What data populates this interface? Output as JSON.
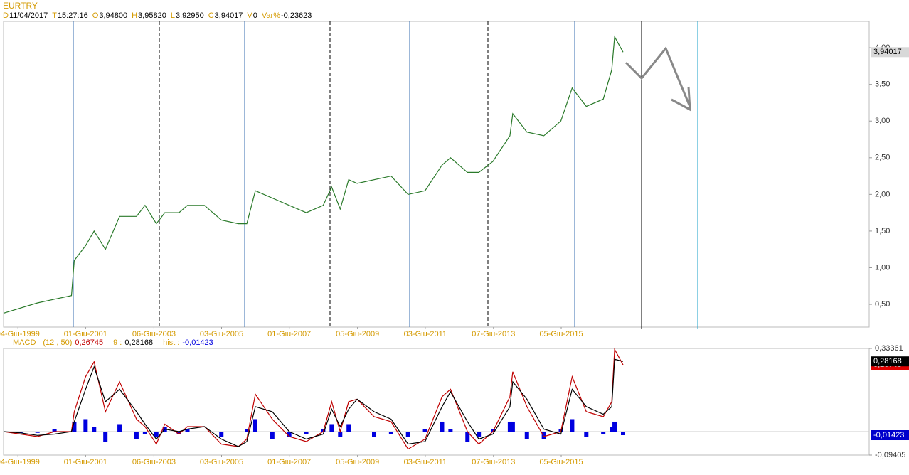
{
  "header": {
    "symbol": "EURTRY",
    "fields": [
      {
        "key": "D",
        "value": "11/04/2017"
      },
      {
        "key": "T",
        "value": "15:27:16"
      },
      {
        "key": "O",
        "value": "3,94800"
      },
      {
        "key": "H",
        "value": "3,95820"
      },
      {
        "key": "L",
        "value": "3,92950"
      },
      {
        "key": "C",
        "value": "3,94017"
      },
      {
        "key": "V",
        "value": "0"
      },
      {
        "key": "Var%",
        "value": "-0,23623"
      }
    ]
  },
  "chart_data": [
    {
      "type": "line",
      "x": [
        "1999-01",
        "1999-07",
        "2000-01",
        "2000-07",
        "2001-01",
        "2001-02",
        "2001-06",
        "2001-09",
        "2002-01",
        "2002-06",
        "2002-12",
        "2003-03",
        "2003-07",
        "2003-10",
        "2004-03",
        "2004-06",
        "2004-12",
        "2005-06",
        "2005-12",
        "2006-03",
        "2006-06",
        "2006-12",
        "2007-06",
        "2007-12",
        "2008-06",
        "2008-09",
        "2008-12",
        "2009-03",
        "2009-06",
        "2009-12",
        "2010-06",
        "2010-12",
        "2011-06",
        "2011-12",
        "2012-03",
        "2012-09",
        "2013-01",
        "2013-06",
        "2013-12",
        "2014-01",
        "2014-06",
        "2014-12",
        "2015-06",
        "2015-10",
        "2016-03",
        "2016-09",
        "2016-12",
        "2017-01",
        "2017-04"
      ],
      "series": [
        {
          "name": "EURTRY",
          "color": "#2a7a2a",
          "values": [
            0.38,
            0.45,
            0.52,
            0.57,
            0.62,
            1.1,
            1.3,
            1.5,
            1.25,
            1.7,
            1.7,
            1.85,
            1.6,
            1.75,
            1.75,
            1.85,
            1.85,
            1.65,
            1.6,
            1.6,
            2.05,
            1.95,
            1.85,
            1.75,
            1.85,
            2.1,
            1.8,
            2.2,
            2.15,
            2.2,
            2.25,
            2.0,
            2.05,
            2.4,
            2.5,
            2.3,
            2.3,
            2.45,
            2.8,
            3.1,
            2.85,
            2.8,
            3.0,
            3.45,
            3.2,
            3.3,
            3.7,
            4.15,
            3.94
          ]
        }
      ],
      "last_label": "3,94017",
      "xlim": [
        "1999-01",
        "2024-07"
      ],
      "xticks": [
        {
          "value": "1999-06-04",
          "label": "04-Giu-1999"
        },
        {
          "value": "2001-06-01",
          "label": "01-Giu-2001"
        },
        {
          "value": "2003-06-06",
          "label": "06-Giu-2003"
        },
        {
          "value": "2005-06-03",
          "label": "03-Giu-2005"
        },
        {
          "value": "2007-06-01",
          "label": "01-Giu-2007"
        },
        {
          "value": "2009-06-05",
          "label": "05-Giu-2009"
        },
        {
          "value": "2011-06-03",
          "label": "03-Giu-2011"
        },
        {
          "value": "2013-06-07",
          "label": "07-Giu-2013"
        },
        {
          "value": "2015-06-05",
          "label": "05-Giu-2015"
        }
      ],
      "ylim": [
        0.19,
        4.36
      ],
      "yticks": [
        {
          "value": 0.5,
          "label": "0,50"
        },
        {
          "value": 1.0,
          "label": "1,00"
        },
        {
          "value": 1.5,
          "label": "1,50"
        },
        {
          "value": 2.0,
          "label": "2,00"
        },
        {
          "value": 2.5,
          "label": "2,50"
        },
        {
          "value": 3.0,
          "label": "3,00"
        },
        {
          "value": 3.5,
          "label": "3,50"
        },
        {
          "value": 4.0,
          "label": "4,00"
        }
      ]
    },
    {
      "type": "macd",
      "title": "MACD",
      "params": "(12 , 50)",
      "legend": [
        {
          "label": "0,26745"
        },
        {
          "key": "9 :",
          "label": "0,28168"
        },
        {
          "key": "hist :",
          "label": "-0,01423"
        }
      ],
      "x": [
        "1999-01",
        "1999-07",
        "2000-01",
        "2000-07",
        "2001-01",
        "2001-02",
        "2001-06",
        "2001-09",
        "2002-01",
        "2002-06",
        "2002-12",
        "2003-03",
        "2003-07",
        "2003-10",
        "2004-03",
        "2004-06",
        "2004-12",
        "2005-06",
        "2005-12",
        "2006-03",
        "2006-06",
        "2006-12",
        "2007-06",
        "2007-12",
        "2008-06",
        "2008-09",
        "2008-12",
        "2009-03",
        "2009-06",
        "2009-12",
        "2010-06",
        "2010-12",
        "2011-06",
        "2011-12",
        "2012-03",
        "2012-09",
        "2013-01",
        "2013-06",
        "2013-12",
        "2014-01",
        "2014-06",
        "2014-12",
        "2015-06",
        "2015-10",
        "2016-03",
        "2016-09",
        "2016-12",
        "2017-01",
        "2017-04"
      ],
      "series": [
        {
          "name": "MACD",
          "color": "#c00000",
          "type": "line",
          "last_label": "0,26745",
          "values": [
            0.0,
            -0.01,
            -0.02,
            0.0,
            0.0,
            0.08,
            0.22,
            0.28,
            0.08,
            0.2,
            0.05,
            0.02,
            -0.05,
            0.03,
            -0.01,
            0.02,
            0.02,
            -0.05,
            -0.06,
            -0.03,
            0.15,
            0.05,
            -0.02,
            -0.04,
            0.0,
            0.12,
            0.0,
            0.12,
            0.13,
            0.06,
            0.04,
            -0.07,
            -0.03,
            0.14,
            0.17,
            0.0,
            -0.05,
            0.0,
            0.14,
            0.24,
            0.1,
            -0.02,
            0.0,
            0.22,
            0.08,
            0.06,
            0.12,
            0.33,
            0.26745
          ]
        },
        {
          "name": "9",
          "color": "#000000",
          "type": "line",
          "last_label": "0,28168",
          "values": [
            0.0,
            -0.005,
            -0.015,
            -0.01,
            0.0,
            0.04,
            0.17,
            0.26,
            0.12,
            0.17,
            0.08,
            0.03,
            -0.03,
            0.01,
            0.0,
            0.01,
            0.02,
            -0.03,
            -0.06,
            -0.04,
            0.1,
            0.08,
            0.0,
            -0.03,
            -0.01,
            0.09,
            0.02,
            0.09,
            0.13,
            0.08,
            0.05,
            -0.05,
            -0.04,
            0.1,
            0.16,
            0.04,
            -0.03,
            -0.01,
            0.1,
            0.2,
            0.13,
            0.01,
            -0.01,
            0.17,
            0.1,
            0.07,
            0.1,
            0.29,
            0.28168
          ]
        },
        {
          "name": "hist",
          "color": "#0000e0",
          "type": "bar",
          "last_label": "-0,01423",
          "values": [
            0.0,
            -0.005,
            -0.005,
            0.01,
            0.0,
            0.04,
            0.05,
            0.02,
            -0.04,
            0.03,
            -0.03,
            -0.01,
            -0.02,
            0.02,
            -0.01,
            0.01,
            0.0,
            -0.02,
            0.0,
            0.01,
            0.05,
            -0.03,
            -0.02,
            -0.01,
            0.01,
            0.03,
            -0.02,
            0.03,
            0.0,
            -0.02,
            -0.01,
            -0.02,
            0.01,
            0.04,
            0.01,
            -0.04,
            -0.02,
            0.01,
            0.04,
            0.04,
            -0.03,
            -0.03,
            0.01,
            0.05,
            -0.02,
            -0.01,
            0.02,
            0.04,
            -0.01423
          ]
        }
      ],
      "xlim": [
        "1999-01",
        "2024-07"
      ],
      "xticks": [
        {
          "value": "1999-06-04",
          "label": "04-Giu-1999"
        },
        {
          "value": "2001-06-01",
          "label": "01-Giu-2001"
        },
        {
          "value": "2003-06-06",
          "label": "06-Giu-2003"
        },
        {
          "value": "2005-06-03",
          "label": "03-Giu-2005"
        },
        {
          "value": "2007-06-01",
          "label": "01-Giu-2007"
        },
        {
          "value": "2009-06-05",
          "label": "05-Giu-2009"
        },
        {
          "value": "2011-06-03",
          "label": "03-Giu-2011"
        },
        {
          "value": "2013-06-07",
          "label": "07-Giu-2013"
        },
        {
          "value": "2015-06-05",
          "label": "05-Giu-2015"
        }
      ],
      "ylim": [
        -0.09405,
        0.33361
      ],
      "yticks": [
        {
          "value": -0.09405,
          "label": "-0,09405"
        },
        {
          "value": 0.33361,
          "label": "0,33361"
        }
      ]
    }
  ]
}
